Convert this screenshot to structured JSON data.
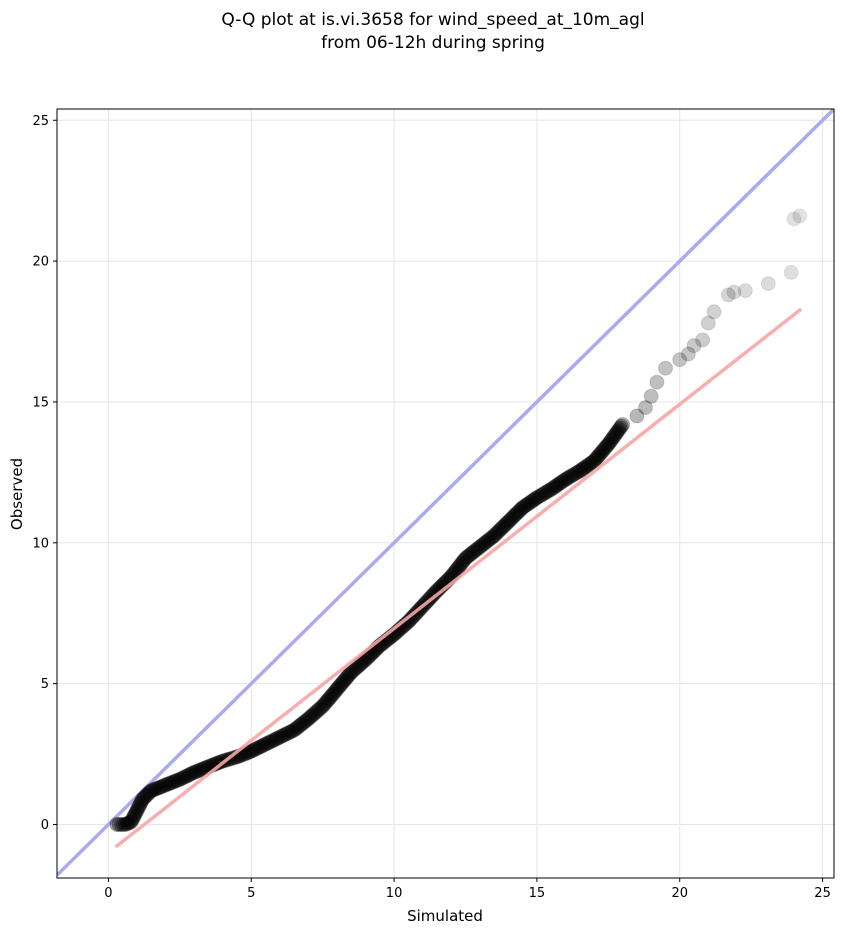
{
  "chart_data": {
    "type": "scatter",
    "title": "Q-Q plot at is.vi.3658 for wind_speed_at_10m_agl",
    "subtitle": "from 06-12h during spring",
    "xlabel": "Simulated",
    "ylabel": "Observed",
    "xlim": [
      -1.8,
      25.4
    ],
    "ylim": [
      -1.9,
      25.4
    ],
    "xticks": [
      0,
      5,
      10,
      15,
      20,
      25
    ],
    "yticks": [
      0,
      5,
      10,
      15,
      20,
      25
    ],
    "grid": true,
    "reference_line": {
      "slope": 1,
      "intercept": 0,
      "color": "#aaaaf0"
    },
    "fit_line": {
      "x": [
        0.25,
        24.25
      ],
      "y": [
        -0.8,
        18.3
      ],
      "color": "#f5a5a5"
    },
    "point_color": "#000000",
    "quantile_curve": [
      [
        0.3,
        0.0
      ],
      [
        0.6,
        0.0
      ],
      [
        0.8,
        0.1
      ],
      [
        1.0,
        0.5
      ],
      [
        1.2,
        0.9
      ],
      [
        1.5,
        1.2
      ],
      [
        2.0,
        1.4
      ],
      [
        2.5,
        1.6
      ],
      [
        3.0,
        1.85
      ],
      [
        3.5,
        2.05
      ],
      [
        4.0,
        2.25
      ],
      [
        4.5,
        2.4
      ],
      [
        5.0,
        2.6
      ],
      [
        5.5,
        2.85
      ],
      [
        6.0,
        3.1
      ],
      [
        6.5,
        3.35
      ],
      [
        7.0,
        3.75
      ],
      [
        7.5,
        4.2
      ],
      [
        8.0,
        4.8
      ],
      [
        8.5,
        5.4
      ],
      [
        9.0,
        5.85
      ],
      [
        9.5,
        6.35
      ],
      [
        10.0,
        6.75
      ],
      [
        10.5,
        7.2
      ],
      [
        11.0,
        7.75
      ],
      [
        11.5,
        8.3
      ],
      [
        12.0,
        8.8
      ],
      [
        12.5,
        9.45
      ],
      [
        13.0,
        9.85
      ],
      [
        13.5,
        10.25
      ],
      [
        14.0,
        10.75
      ],
      [
        14.5,
        11.25
      ],
      [
        15.0,
        11.6
      ],
      [
        15.5,
        11.9
      ],
      [
        16.0,
        12.25
      ],
      [
        16.5,
        12.55
      ],
      [
        17.0,
        12.9
      ],
      [
        17.5,
        13.5
      ],
      [
        18.0,
        14.2
      ]
    ],
    "tail_points": [
      [
        18.5,
        14.5
      ],
      [
        18.8,
        14.8
      ],
      [
        19.0,
        15.2
      ],
      [
        19.2,
        15.7
      ],
      [
        19.5,
        16.2
      ],
      [
        20.0,
        16.5
      ],
      [
        20.3,
        16.7
      ],
      [
        20.5,
        17.0
      ],
      [
        20.8,
        17.2
      ],
      [
        21.0,
        17.8
      ],
      [
        21.2,
        18.2
      ],
      [
        21.7,
        18.8
      ],
      [
        21.9,
        18.9
      ],
      [
        22.3,
        18.95
      ],
      [
        23.1,
        19.2
      ],
      [
        23.9,
        19.6
      ],
      [
        24.0,
        21.5
      ],
      [
        24.2,
        21.6
      ]
    ]
  }
}
